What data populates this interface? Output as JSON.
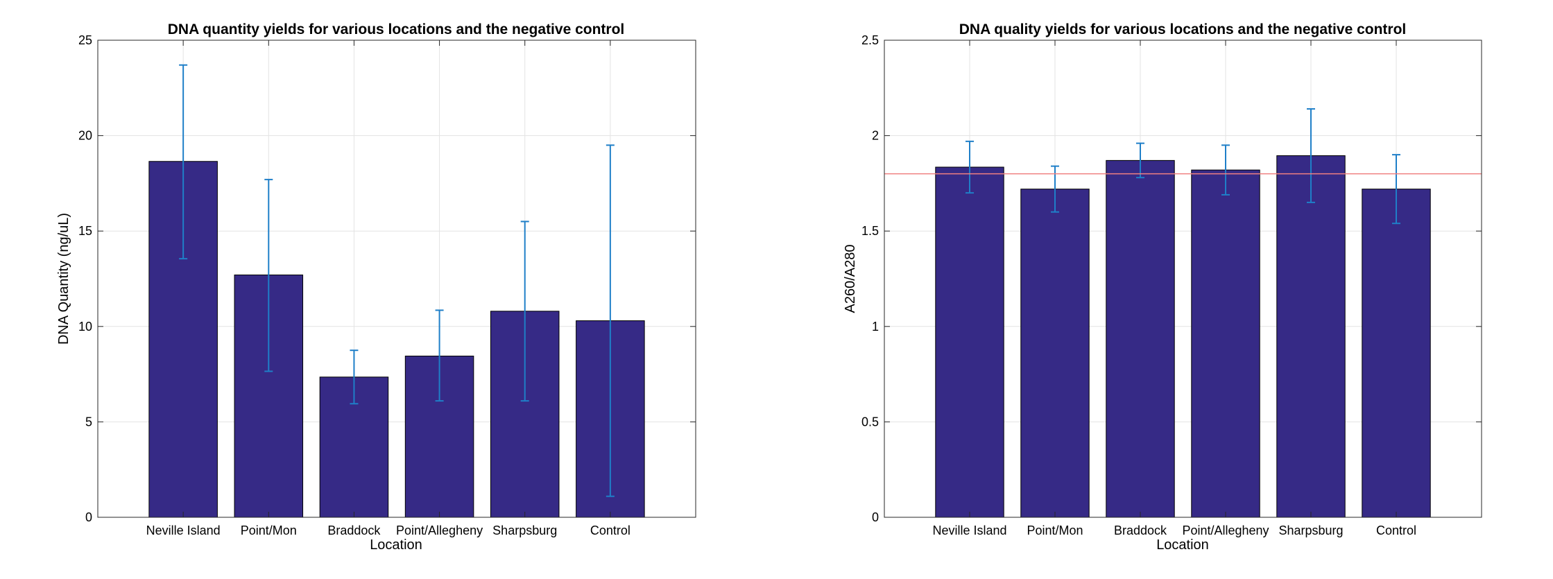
{
  "figure": {
    "charts": [
      {
        "id": "left",
        "title": "DNA quantity yields for various locations and the negative control",
        "xlabel": "Location",
        "ylabel": "DNA Quantity (ng/uL)"
      },
      {
        "id": "right",
        "title": "DNA quality yields for various locations and the negative control",
        "xlabel": "Location",
        "ylabel": "A260/A280"
      }
    ]
  },
  "chart_data": [
    {
      "type": "bar",
      "title": "DNA quantity yields for various locations and the negative control",
      "xlabel": "Location",
      "ylabel": "DNA Quantity (ng/uL)",
      "categories": [
        "Neville Island",
        "Point/Mon",
        "Braddock",
        "Point/Allegheny",
        "Sharpsburg",
        "Control"
      ],
      "values": [
        18.65,
        12.7,
        7.35,
        8.45,
        10.8,
        10.3
      ],
      "error_low": [
        13.55,
        7.65,
        5.95,
        6.1,
        6.1,
        1.1
      ],
      "error_high": [
        23.7,
        17.7,
        8.75,
        10.85,
        15.5,
        19.5
      ],
      "ylim": [
        0,
        25
      ],
      "yticks": [
        0,
        5,
        10,
        15,
        20,
        25
      ],
      "ytick_labels": [
        "0",
        "5",
        "10",
        "15",
        "20",
        "25"
      ],
      "grid": true,
      "bar_color": "#362A86",
      "error_color": "#1F7FC8"
    },
    {
      "type": "bar",
      "title": "DNA quality yields for various locations and the negative control",
      "xlabel": "Location",
      "ylabel": "A260/A280",
      "categories": [
        "Neville Island",
        "Point/Mon",
        "Braddock",
        "Point/Allegheny",
        "Sharpsburg",
        "Control"
      ],
      "values": [
        1.835,
        1.72,
        1.87,
        1.82,
        1.895,
        1.72
      ],
      "error_low": [
        1.7,
        1.6,
        1.78,
        1.69,
        1.65,
        1.54
      ],
      "error_high": [
        1.97,
        1.84,
        1.96,
        1.95,
        2.14,
        1.9
      ],
      "ylim": [
        0,
        2.5
      ],
      "yticks": [
        0,
        0.5,
        1,
        1.5,
        2,
        2.5
      ],
      "ytick_labels": [
        "0",
        "0.5",
        "1",
        "1.5",
        "2",
        "2.5"
      ],
      "reference_line": 1.8,
      "reference_line_color": "#F08080",
      "grid": true,
      "bar_color": "#362A86",
      "error_color": "#1F7FC8"
    }
  ]
}
